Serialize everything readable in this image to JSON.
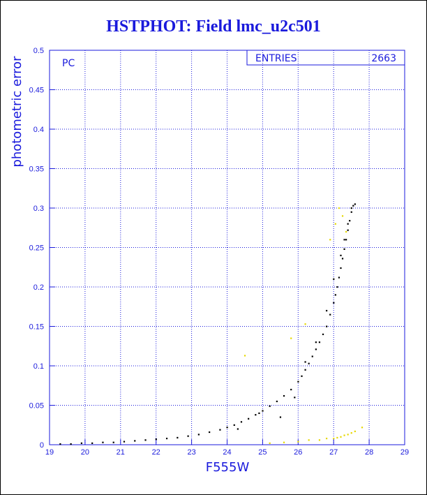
{
  "title": "HSTPHOT: Field lmc_u2c501",
  "chart_data": {
    "type": "scatter",
    "title": "HSTPHOT: Field lmc_u2c501",
    "xlabel": "F555W",
    "ylabel": "photometric error",
    "xlim": [
      19,
      29
    ],
    "ylim": [
      0,
      0.5
    ],
    "xticks": [
      "19",
      "20",
      "21",
      "22",
      "23",
      "24",
      "25",
      "26",
      "27",
      "28",
      "29"
    ],
    "yticks": [
      "0",
      "0.05",
      "0.1",
      "0.15",
      "0.2",
      "0.25",
      "0.3",
      "0.35",
      "0.4",
      "0.45",
      "0.5"
    ],
    "grid": true,
    "panel_label": "PC",
    "stats_box": {
      "label": "ENTRIES",
      "value": "2663"
    },
    "colors": {
      "axis": "#1a1adc",
      "series_main": "#000000",
      "series_secondary": "#e6d800"
    },
    "series": [
      {
        "color": "#000000",
        "x": [
          19.3,
          19.6,
          19.9,
          20.2,
          20.5,
          20.8,
          21.1,
          21.4,
          21.7,
          22.0,
          22.3,
          22.6,
          22.9,
          23.2,
          23.5,
          23.8,
          24.0,
          24.2,
          24.4,
          24.6,
          24.8,
          25.0,
          25.2,
          25.4,
          25.6,
          25.8,
          26.0,
          26.1,
          26.2,
          26.3,
          26.4,
          26.5,
          26.6,
          26.7,
          26.8,
          26.9,
          27.0,
          27.05,
          27.1,
          27.15,
          27.2,
          27.25,
          27.3,
          27.35,
          27.4,
          27.45,
          27.5,
          27.55,
          27.6,
          24.3,
          24.9,
          25.5,
          25.9,
          26.2,
          26.5,
          26.8,
          27.0,
          27.2,
          27.3,
          27.4,
          27.5
        ],
        "y": [
          0.001,
          0.001,
          0.002,
          0.002,
          0.003,
          0.003,
          0.004,
          0.005,
          0.006,
          0.007,
          0.008,
          0.009,
          0.011,
          0.013,
          0.016,
          0.019,
          0.022,
          0.025,
          0.029,
          0.033,
          0.038,
          0.043,
          0.049,
          0.055,
          0.062,
          0.07,
          0.08,
          0.087,
          0.095,
          0.103,
          0.112,
          0.121,
          0.13,
          0.14,
          0.15,
          0.165,
          0.18,
          0.19,
          0.2,
          0.212,
          0.224,
          0.236,
          0.248,
          0.26,
          0.272,
          0.284,
          0.295,
          0.303,
          0.305,
          0.02,
          0.04,
          0.035,
          0.06,
          0.105,
          0.13,
          0.17,
          0.21,
          0.24,
          0.26,
          0.28,
          0.3
        ]
      },
      {
        "color": "#e6d800",
        "x": [
          24.5,
          25.2,
          25.6,
          26.0,
          26.3,
          26.6,
          26.8,
          27.0,
          27.1,
          27.2,
          27.3,
          27.4,
          27.5,
          27.6,
          27.8,
          26.9,
          27.05,
          27.15,
          27.25,
          27.35,
          25.8,
          26.2
        ],
        "y": [
          0.113,
          0.002,
          0.003,
          0.004,
          0.006,
          0.006,
          0.008,
          0.008,
          0.009,
          0.01,
          0.012,
          0.013,
          0.015,
          0.017,
          0.022,
          0.26,
          0.28,
          0.3,
          0.29,
          0.27,
          0.135,
          0.153
        ]
      }
    ]
  }
}
